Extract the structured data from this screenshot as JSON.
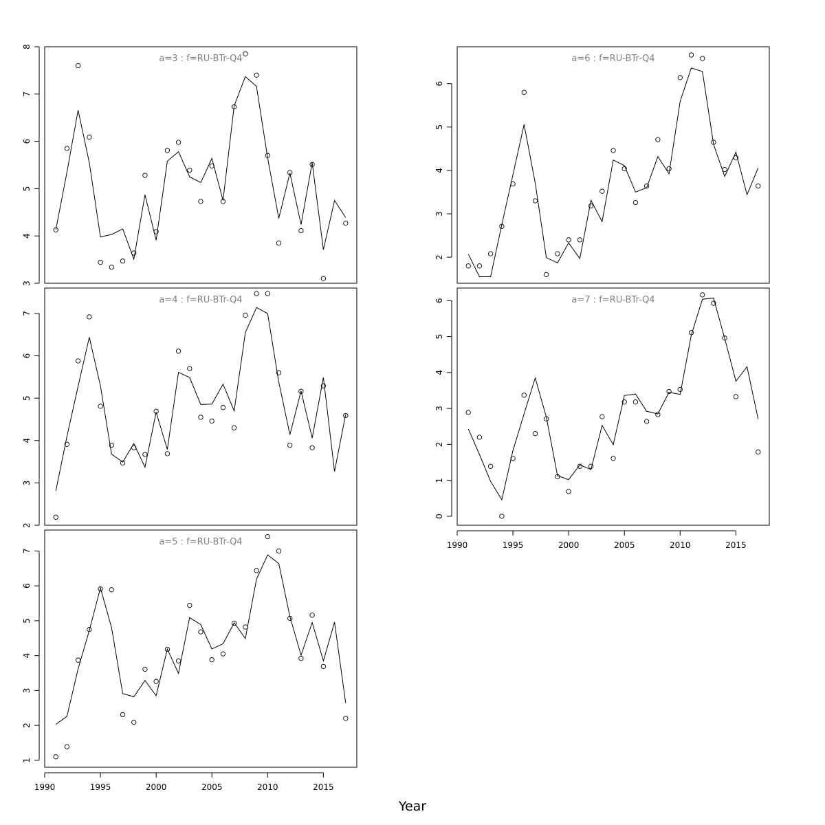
{
  "figure": {
    "xlabel": "Year"
  },
  "chart_data": [
    {
      "type": "line",
      "title": "a=3  :  f=RU-BTr-Q4",
      "xlim": [
        1990,
        2018
      ],
      "ylim": [
        3,
        8
      ],
      "xticks": [
        1990,
        1995,
        2000,
        2005,
        2010,
        2015
      ],
      "yticks": [
        3,
        4,
        5,
        6,
        7,
        8
      ],
      "show_x_axis": false,
      "series": [
        {
          "type": "scatter",
          "x": [
            1991,
            1992,
            1993,
            1994,
            1995,
            1996,
            1997,
            1998,
            1999,
            2000,
            2001,
            2002,
            2003,
            2004,
            2005,
            2006,
            2007,
            2008,
            2009,
            2010,
            2011,
            2012,
            2013,
            2014,
            2015,
            2017
          ],
          "y": [
            4.13,
            5.85,
            7.6,
            6.09,
            3.44,
            3.34,
            3.47,
            3.64,
            5.28,
            4.09,
            5.81,
            5.98,
            5.39,
            4.73,
            5.48,
            4.73,
            6.73,
            7.85,
            7.4,
            5.7,
            3.85,
            5.34,
            4.11,
            5.51,
            3.1,
            4.27
          ]
        },
        {
          "type": "line",
          "x": [
            1991,
            1992,
            1993,
            1994,
            1995,
            1996,
            1997,
            1998,
            1999,
            2000,
            2001,
            2002,
            2003,
            2004,
            2005,
            2006,
            2007,
            2008,
            2009,
            2010,
            2011,
            2012,
            2013,
            2014,
            2015,
            2016,
            2017
          ],
          "y": [
            4.13,
            5.35,
            6.66,
            5.55,
            3.98,
            4.03,
            4.15,
            3.51,
            4.87,
            3.91,
            5.58,
            5.78,
            5.25,
            5.13,
            5.64,
            4.75,
            6.75,
            7.37,
            7.16,
            5.65,
            4.37,
            5.33,
            4.24,
            5.55,
            3.71,
            4.75,
            4.39
          ]
        }
      ]
    },
    {
      "type": "line",
      "title": "a=4  :  f=RU-BTr-Q4",
      "xlim": [
        1990,
        2018
      ],
      "ylim": [
        2,
        7.6
      ],
      "xticks": [
        1990,
        1995,
        2000,
        2005,
        2010,
        2015
      ],
      "yticks": [
        2,
        3,
        4,
        5,
        6,
        7
      ],
      "show_x_axis": false,
      "series": [
        {
          "type": "scatter",
          "x": [
            1991,
            1992,
            1993,
            1994,
            1995,
            1996,
            1997,
            1998,
            1999,
            2000,
            2001,
            2002,
            2003,
            2004,
            2005,
            2006,
            2007,
            2008,
            2009,
            2010,
            2011,
            2012,
            2013,
            2014,
            2015,
            2017
          ],
          "y": [
            2.19,
            3.91,
            5.88,
            6.92,
            4.81,
            3.89,
            3.47,
            3.83,
            3.67,
            4.69,
            3.69,
            6.11,
            5.7,
            4.55,
            4.46,
            4.78,
            4.3,
            6.96,
            7.47,
            7.47,
            5.6,
            3.89,
            5.16,
            3.83,
            5.29,
            4.59
          ]
        },
        {
          "type": "line",
          "x": [
            1991,
            1992,
            1993,
            1994,
            1995,
            1996,
            1997,
            1998,
            1999,
            2000,
            2001,
            2002,
            2003,
            2004,
            2005,
            2006,
            2007,
            2008,
            2009,
            2010,
            2011,
            2012,
            2013,
            2014,
            2015,
            2016,
            2017
          ],
          "y": [
            2.81,
            4.1,
            5.28,
            6.44,
            5.29,
            3.68,
            3.49,
            3.93,
            3.37,
            4.67,
            3.79,
            5.61,
            5.49,
            4.85,
            4.86,
            5.33,
            4.7,
            6.55,
            7.14,
            7,
            5.38,
            4.14,
            5.17,
            4.06,
            5.49,
            3.27,
            4.62
          ]
        }
      ]
    },
    {
      "type": "line",
      "title": "a=5  :  f=RU-BTr-Q4",
      "xlim": [
        1990,
        2018
      ],
      "ylim": [
        0.8,
        7.6
      ],
      "xticks": [
        1990,
        1995,
        2000,
        2005,
        2010,
        2015
      ],
      "yticks": [
        1,
        2,
        3,
        4,
        5,
        6,
        7
      ],
      "show_x_axis": true,
      "series": [
        {
          "type": "scatter",
          "x": [
            1991,
            1992,
            1993,
            1994,
            1995,
            1996,
            1997,
            1998,
            1999,
            2000,
            2001,
            2002,
            2003,
            2004,
            2005,
            2006,
            2007,
            2008,
            2009,
            2010,
            2011,
            2012,
            2013,
            2014,
            2015,
            2017
          ],
          "y": [
            1.1,
            1.39,
            3.87,
            4.75,
            5.91,
            5.89,
            2.31,
            2.09,
            3.61,
            3.26,
            4.18,
            3.85,
            5.44,
            4.68,
            3.88,
            4.05,
            4.93,
            4.82,
            6.44,
            7.41,
            7,
            5.07,
            3.92,
            5.16,
            3.69,
            2.2
          ]
        },
        {
          "type": "line",
          "x": [
            1991,
            1992,
            1993,
            1994,
            1995,
            1996,
            1997,
            1998,
            1999,
            2000,
            2001,
            2002,
            2003,
            2004,
            2005,
            2006,
            2007,
            2008,
            2009,
            2010,
            2011,
            2012,
            2013,
            2014,
            2015,
            2016,
            2017
          ],
          "y": [
            2.03,
            2.26,
            3.62,
            4.72,
            5.94,
            4.8,
            2.91,
            2.82,
            3.29,
            2.85,
            4.19,
            3.49,
            5.09,
            4.89,
            4.19,
            4.34,
            4.94,
            4.49,
            6.19,
            6.89,
            6.64,
            5.12,
            4.01,
            4.95,
            3.85,
            4.96,
            2.64
          ]
        }
      ]
    },
    {
      "type": "line",
      "title": "a=6  :  f=RU-BTr-Q4",
      "xlim": [
        1990,
        2018
      ],
      "ylim": [
        1.4,
        6.85
      ],
      "xticks": [
        1990,
        1995,
        2000,
        2005,
        2010,
        2015
      ],
      "yticks": [
        2,
        3,
        4,
        5,
        6
      ],
      "show_x_axis": false,
      "series": [
        {
          "type": "scatter",
          "x": [
            1991,
            1992,
            1993,
            1994,
            1995,
            1996,
            1997,
            1998,
            1999,
            2000,
            2001,
            2002,
            2003,
            2004,
            2005,
            2006,
            2007,
            2008,
            2009,
            2010,
            2011,
            2012,
            2013,
            2014,
            2015,
            2017
          ],
          "y": [
            1.8,
            1.8,
            2.08,
            2.71,
            3.69,
            5.8,
            3.3,
            1.6,
            2.08,
            2.4,
            2.4,
            3.18,
            3.52,
            4.46,
            4.04,
            3.26,
            3.64,
            4.71,
            4.04,
            6.14,
            6.66,
            6.58,
            4.65,
            4.02,
            4.29,
            3.64
          ]
        },
        {
          "type": "line",
          "x": [
            1991,
            1992,
            1993,
            1994,
            1995,
            1996,
            1997,
            1998,
            1999,
            2000,
            2001,
            2002,
            2003,
            2004,
            2005,
            2006,
            2007,
            2008,
            2009,
            2010,
            2011,
            2012,
            2013,
            2014,
            2015,
            2016,
            2017
          ],
          "y": [
            2.07,
            1.55,
            1.55,
            2.75,
            3.9,
            5.06,
            3.71,
            1.99,
            1.87,
            2.33,
            1.97,
            3.31,
            2.82,
            4.24,
            4.11,
            3.5,
            3.6,
            4.32,
            3.92,
            5.59,
            6.36,
            6.28,
            4.6,
            3.86,
            4.42,
            3.44,
            4.06
          ]
        }
      ]
    },
    {
      "type": "line",
      "title": "a=7  :  f=RU-BTr-Q4",
      "xlim": [
        1990,
        2018
      ],
      "ylim": [
        -0.25,
        6.35
      ],
      "xticks": [
        1990,
        1995,
        2000,
        2005,
        2010,
        2015
      ],
      "yticks": [
        0,
        1,
        2,
        3,
        4,
        5,
        6
      ],
      "show_x_axis": true,
      "series": [
        {
          "type": "scatter",
          "x": [
            1991,
            1992,
            1993,
            1994,
            1995,
            1996,
            1997,
            1998,
            1999,
            2000,
            2001,
            2002,
            2003,
            2004,
            2005,
            2006,
            2007,
            2008,
            2009,
            2010,
            2011,
            2012,
            2013,
            2014,
            2015,
            2017
          ],
          "y": [
            2.89,
            2.2,
            1.39,
            0,
            1.61,
            3.37,
            2.3,
            2.71,
            1.1,
            0.69,
            1.39,
            1.39,
            2.77,
            1.61,
            3.18,
            3.18,
            2.64,
            2.83,
            3.47,
            3.53,
            5.11,
            6.16,
            5.93,
            4.96,
            3.33,
            1.79
          ]
        },
        {
          "type": "line",
          "x": [
            1991,
            1992,
            1993,
            1994,
            1995,
            1996,
            1997,
            1998,
            1999,
            2000,
            2001,
            2002,
            2003,
            2004,
            2005,
            2006,
            2007,
            2008,
            2009,
            2010,
            2011,
            2012,
            2013,
            2014,
            2015,
            2016,
            2017
          ],
          "y": [
            2.43,
            1.72,
            0.97,
            0.46,
            1.83,
            2.85,
            3.85,
            2.76,
            1.13,
            1.02,
            1.43,
            1.3,
            2.53,
            1.99,
            3.36,
            3.4,
            2.92,
            2.85,
            3.45,
            3.39,
            5.04,
            6.04,
            6.07,
            4.95,
            3.76,
            4.16,
            2.7
          ]
        }
      ]
    }
  ]
}
